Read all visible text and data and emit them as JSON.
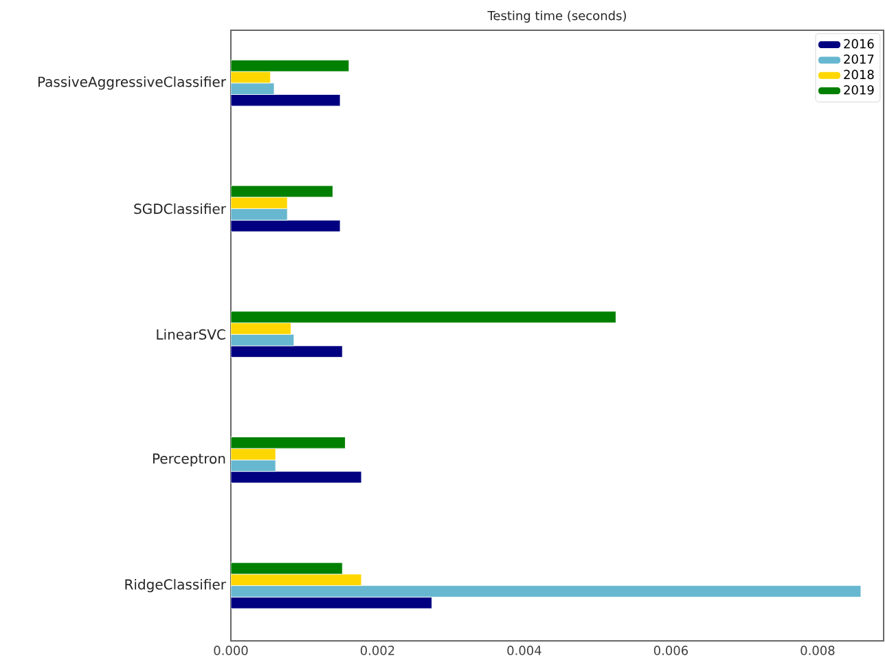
{
  "chart_data": {
    "type": "bar",
    "orientation": "horizontal",
    "title": "Testing time (seconds)",
    "categories": [
      "PassiveAggressiveClassifier",
      "SGDClassifier",
      "LinearSVC",
      "Perceptron",
      "RidgeClassifier"
    ],
    "series": [
      {
        "name": "2016",
        "color": "#000080",
        "values": [
          0.00149,
          0.00149,
          0.00152,
          0.00178,
          0.00274
        ]
      },
      {
        "name": "2017",
        "color": "#67b7d0",
        "values": [
          0.00059,
          0.00077,
          0.00086,
          0.00061,
          0.00859
        ]
      },
      {
        "name": "2018",
        "color": "#ffd700",
        "values": [
          0.00054,
          0.00077,
          0.00082,
          0.00061,
          0.00178
        ]
      },
      {
        "name": "2019",
        "color": "#008000",
        "values": [
          0.00161,
          0.00139,
          0.00525,
          0.00156,
          0.00152
        ]
      }
    ],
    "xlim": [
      0,
      0.0089
    ],
    "xticks": [
      {
        "value": 0,
        "label": "0.000"
      },
      {
        "value": 0.002,
        "label": "0.002"
      },
      {
        "value": 0.004,
        "label": "0.004"
      },
      {
        "value": 0.006,
        "label": "0.006"
      },
      {
        "value": 0.008,
        "label": "0.008"
      }
    ],
    "legend": "top right"
  }
}
